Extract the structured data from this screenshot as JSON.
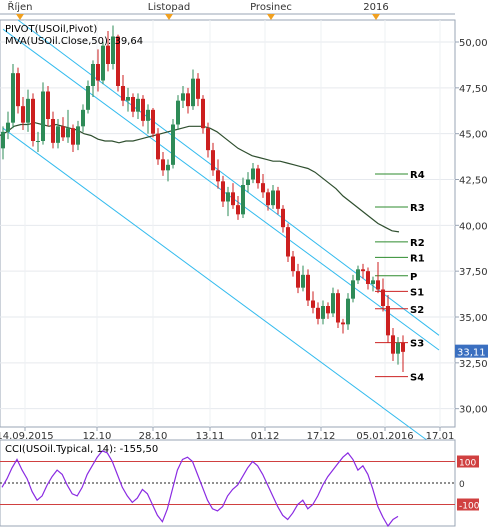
{
  "chart_data": [
    {
      "type": "candlestick",
      "instrument": "USOil",
      "study_labels": {
        "pivot": "PIVOT(USOil,Pivot)",
        "mva_name": "MVA(USOil.Close,50)",
        "mva_value": "39,64"
      },
      "month_labels": [
        "Říjen",
        "Listopad",
        "Prosinec",
        "2016"
      ],
      "x_tick_labels": [
        "14.09.2015",
        "12.10",
        "28.10",
        "13.11",
        "01.12",
        "17.12",
        "05.01.2016",
        "17.01"
      ],
      "y_tick_labels": [
        "50,00",
        "47,50",
        "45,00",
        "42,50",
        "40,00",
        "37,50",
        "35,00",
        "32,50",
        "30,00"
      ],
      "ylim": [
        29.0,
        51.2
      ],
      "last_price": 33.11,
      "last_price_label": "33,11",
      "colors": {
        "up": "#2e8b57",
        "down": "#cc1f1f",
        "mva": "#2f4f2f",
        "channel": "#33bbee",
        "pivot": "#2e8b2e",
        "support": "#cc2222",
        "last_price_box": "#3a6fc0"
      },
      "candles": [
        [
          44.2,
          45.4,
          43.6,
          45.1
        ],
        [
          45.1,
          46.2,
          44.7,
          45.6
        ],
        [
          45.6,
          48.8,
          45.3,
          48.3
        ],
        [
          48.3,
          48.6,
          46.1,
          46.5
        ],
        [
          46.5,
          47.0,
          45.2,
          45.6
        ],
        [
          45.6,
          47.4,
          45.1,
          46.9
        ],
        [
          46.9,
          47.2,
          44.3,
          44.6
        ],
        [
          44.6,
          45.1,
          44.0,
          44.6
        ],
        [
          44.6,
          47.8,
          44.4,
          47.3
        ],
        [
          47.3,
          47.6,
          45.4,
          45.8
        ],
        [
          45.8,
          46.2,
          44.2,
          44.5
        ],
        [
          44.5,
          45.8,
          44.2,
          45.4
        ],
        [
          45.4,
          45.9,
          44.6,
          44.8
        ],
        [
          44.8,
          46.3,
          44.5,
          45.3
        ],
        [
          45.3,
          45.5,
          44.0,
          44.4
        ],
        [
          44.4,
          45.7,
          44.1,
          45.4
        ],
        [
          45.4,
          46.6,
          45.1,
          46.3
        ],
        [
          46.3,
          47.9,
          46.1,
          47.6
        ],
        [
          47.6,
          49.0,
          47.0,
          48.8
        ],
        [
          48.8,
          49.6,
          47.3,
          47.9
        ],
        [
          47.9,
          50.0,
          47.7,
          49.8
        ],
        [
          49.8,
          50.6,
          48.4,
          48.8
        ],
        [
          48.8,
          50.9,
          48.5,
          50.3
        ],
        [
          50.3,
          50.4,
          47.3,
          47.6
        ],
        [
          47.6,
          48.2,
          46.5,
          46.8
        ],
        [
          46.8,
          47.5,
          46.2,
          47.0
        ],
        [
          47.0,
          47.2,
          45.9,
          46.2
        ],
        [
          46.2,
          47.2,
          45.8,
          46.9
        ],
        [
          46.9,
          47.1,
          45.4,
          45.7
        ],
        [
          45.7,
          46.6,
          45.0,
          46.3
        ],
        [
          46.3,
          46.4,
          44.8,
          45.0
        ],
        [
          45.0,
          45.3,
          43.3,
          43.6
        ],
        [
          43.6,
          44.0,
          42.7,
          43.0
        ],
        [
          43.0,
          43.6,
          42.4,
          43.3
        ],
        [
          43.3,
          45.8,
          43.1,
          45.5
        ],
        [
          45.5,
          47.1,
          45.2,
          46.8
        ],
        [
          46.8,
          47.6,
          46.4,
          47.2
        ],
        [
          47.2,
          47.5,
          46.1,
          46.5
        ],
        [
          46.5,
          48.5,
          46.3,
          48.0
        ],
        [
          48.0,
          48.3,
          46.5,
          46.9
        ],
        [
          46.9,
          47.1,
          45.0,
          45.3
        ],
        [
          45.3,
          45.6,
          43.7,
          44.1
        ],
        [
          44.1,
          44.5,
          42.7,
          43.0
        ],
        [
          43.0,
          43.6,
          42.0,
          42.4
        ],
        [
          42.4,
          42.7,
          41.0,
          41.3
        ],
        [
          41.3,
          42.1,
          40.5,
          41.8
        ],
        [
          41.8,
          42.3,
          40.9,
          41.1
        ],
        [
          41.1,
          41.6,
          40.3,
          40.6
        ],
        [
          40.6,
          42.6,
          40.4,
          42.2
        ],
        [
          42.2,
          42.9,
          41.8,
          42.5
        ],
        [
          42.5,
          43.4,
          42.3,
          43.1
        ],
        [
          43.1,
          43.3,
          42.0,
          42.3
        ],
        [
          42.3,
          42.8,
          41.5,
          41.8
        ],
        [
          41.8,
          42.0,
          40.8,
          41.1
        ],
        [
          41.1,
          42.2,
          40.9,
          41.9
        ],
        [
          41.9,
          42.1,
          40.6,
          40.9
        ],
        [
          40.9,
          41.1,
          39.6,
          39.9
        ],
        [
          39.9,
          40.1,
          38.0,
          38.3
        ],
        [
          38.3,
          38.6,
          37.2,
          37.5
        ],
        [
          37.5,
          37.9,
          36.3,
          36.6
        ],
        [
          36.6,
          37.8,
          36.4,
          37.3
        ],
        [
          37.3,
          37.6,
          35.6,
          35.9
        ],
        [
          35.9,
          36.4,
          35.2,
          35.5
        ],
        [
          35.5,
          35.8,
          34.6,
          34.9
        ],
        [
          34.9,
          35.9,
          34.6,
          35.6
        ],
        [
          35.6,
          35.8,
          34.9,
          35.2
        ],
        [
          35.2,
          36.6,
          35.0,
          36.3
        ],
        [
          36.3,
          36.5,
          34.4,
          34.7
        ],
        [
          34.7,
          34.9,
          34.1,
          34.6
        ],
        [
          34.6,
          36.3,
          34.3,
          36.0
        ],
        [
          36.0,
          37.3,
          35.8,
          37.0
        ],
        [
          37.0,
          37.8,
          36.8,
          37.6
        ],
        [
          37.6,
          37.9,
          37.1,
          37.5
        ],
        [
          37.5,
          37.7,
          36.5,
          36.8
        ],
        [
          36.8,
          37.2,
          36.4,
          37.0
        ],
        [
          37.0,
          38.0,
          36.3,
          36.5
        ],
        [
          36.5,
          37.1,
          35.3,
          35.6
        ],
        [
          35.6,
          36.2,
          33.6,
          34.0
        ],
        [
          34.0,
          34.4,
          32.6,
          33.0
        ],
        [
          33.0,
          33.9,
          32.4,
          33.6
        ],
        [
          33.6,
          34.0,
          32.0,
          33.1
        ]
      ],
      "mva": [
        44.9,
        45.1,
        45.4,
        45.5,
        45.5,
        45.6,
        45.5,
        45.4,
        45.5,
        45.4,
        45.3,
        45.2,
        45.0,
        44.9,
        44.7,
        44.6,
        44.6,
        44.5,
        44.6,
        44.6,
        44.7,
        44.8,
        44.9,
        45.0,
        45.1,
        45.2,
        45.3,
        45.4,
        45.4,
        45.4,
        45.3,
        45.1,
        44.8,
        44.5,
        44.2,
        44.0,
        43.8,
        43.7,
        43.6,
        43.5,
        43.5,
        43.4,
        43.3,
        43.2,
        43.1,
        42.9,
        42.6,
        42.3,
        42.0,
        41.6,
        41.3,
        41.0,
        40.7,
        40.4,
        40.1,
        39.9,
        39.7,
        39.64
      ],
      "pivot_levels": [
        {
          "label": "R4",
          "value": 42.8
        },
        {
          "label": "R3",
          "value": 41.0
        },
        {
          "label": "R2",
          "value": 39.1
        },
        {
          "label": "R1",
          "value": 38.25
        },
        {
          "label": "P",
          "value": 37.25
        },
        {
          "label": "S1",
          "value": 36.4
        },
        {
          "label": "S2",
          "value": 35.45
        },
        {
          "label": "S3",
          "value": 33.6
        },
        {
          "label": "S4",
          "value": 31.75
        }
      ],
      "channel_lines": [
        {
          "x1": 0,
          "y1": 50.7,
          "x2": 80,
          "y2": 35.2
        },
        {
          "x1": 0,
          "y1": 45.3,
          "x2": 80,
          "y2": 29.8
        },
        {
          "x1": 3,
          "y1": 51.2,
          "x2": 80,
          "y2": 36.0
        }
      ]
    },
    {
      "type": "line",
      "indicator_label": "CCI(USOil.Typical, 14): -155,50",
      "ylim": [
        -200,
        200
      ],
      "levels": [
        {
          "label": "100",
          "value": 100
        },
        {
          "label": "0",
          "value": 0
        },
        {
          "label": "-100",
          "value": -100
        }
      ],
      "y_tick_labels": [
        "100",
        "0",
        "-100"
      ],
      "values": [
        -20,
        20,
        70,
        110,
        60,
        20,
        -40,
        -80,
        -60,
        -10,
        30,
        60,
        40,
        -10,
        -50,
        -60,
        -20,
        40,
        80,
        120,
        150,
        140,
        100,
        40,
        -20,
        -60,
        -90,
        -70,
        -30,
        -50,
        -100,
        -150,
        -180,
        -120,
        -30,
        60,
        110,
        120,
        100,
        40,
        -20,
        -80,
        -120,
        -130,
        -110,
        -60,
        -30,
        -10,
        30,
        70,
        100,
        80,
        40,
        -10,
        -60,
        -110,
        -150,
        -170,
        -140,
        -100,
        -80,
        -120,
        -100,
        -60,
        -10,
        30,
        60,
        90,
        120,
        140,
        110,
        60,
        80,
        40,
        -30,
        -110,
        -160,
        -200,
        -170,
        -155.5
      ]
    }
  ]
}
